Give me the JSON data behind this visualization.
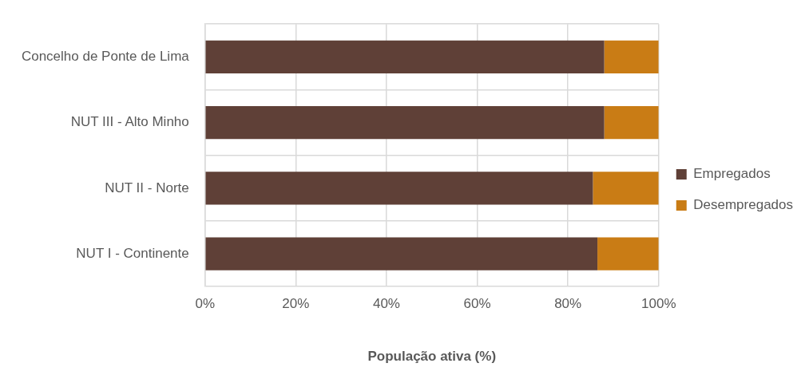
{
  "chart_data": {
    "type": "bar",
    "orientation": "horizontal",
    "stacked": true,
    "categories": [
      "Concelho de Ponte de Lima",
      "NUT III - Alto Minho",
      "NUT II - Norte",
      "NUT I - Continente"
    ],
    "series": [
      {
        "name": "Empregados",
        "color": "#5f4037",
        "values": [
          88,
          88,
          85.5,
          86.5
        ]
      },
      {
        "name": "Desempregados",
        "color": "#c97c15",
        "values": [
          12,
          12,
          14.5,
          13.5
        ]
      }
    ],
    "xlabel": "População ativa (%)",
    "xlim": [
      0,
      100
    ],
    "xticks": [
      {
        "value": 0,
        "label": "0%"
      },
      {
        "value": 20,
        "label": "20%"
      },
      {
        "value": 40,
        "label": "40%"
      },
      {
        "value": 60,
        "label": "60%"
      },
      {
        "value": 80,
        "label": "80%"
      },
      {
        "value": 100,
        "label": "100%"
      }
    ],
    "grid": true,
    "legend": "right"
  }
}
